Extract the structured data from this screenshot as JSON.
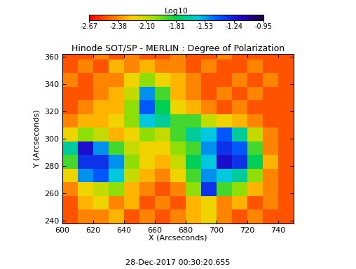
{
  "chart_data": {
    "type": "heatmap",
    "title": "Hinode SOT/SP - MERLIN : Degree of Polarization",
    "x_label": "X (Arcseconds)",
    "y_label": "Y (Arcseconds)",
    "footnote": "28-Dec-2017 00:30:20.655",
    "xlim": [
      600,
      750
    ],
    "ylim": [
      238,
      362
    ],
    "xticks": [
      600,
      620,
      640,
      660,
      680,
      700,
      720,
      740
    ],
    "yticks": [
      240,
      260,
      280,
      300,
      320,
      340,
      360
    ],
    "cell_x_edges": [
      600,
      610,
      620,
      630,
      640,
      650,
      660,
      670,
      680,
      690,
      700,
      710,
      720,
      730,
      740,
      750
    ],
    "cell_y_edges": [
      238,
      248,
      258,
      268,
      278,
      288,
      298,
      308,
      318,
      328,
      338,
      348,
      358,
      362
    ],
    "cells": [
      [
        -2.5,
        -2.4,
        -2.4,
        -2.3,
        -2.5,
        -2.4,
        -2.5,
        -2.4,
        -2.3,
        -2.2,
        -2.4,
        -2.5,
        -2.4,
        -2.5,
        -2.5
      ],
      [
        -2.5,
        -2.3,
        -2.2,
        -2.4,
        -2.3,
        -2.5,
        -2.4,
        -2.5,
        -2.3,
        -2.2,
        -2.4,
        -2.3,
        -2.5,
        -2.4,
        -2.5
      ],
      [
        -2.4,
        -2.2,
        -2.1,
        -2.0,
        -2.3,
        -2.4,
        -2.5,
        -2.4,
        -2.0,
        -1.3,
        -1.9,
        -2.0,
        -2.3,
        -2.4,
        -2.5
      ],
      [
        -2.2,
        -1.5,
        -1.4,
        -1.6,
        -2.1,
        -2.3,
        -2.4,
        -2.2,
        -1.9,
        -1.5,
        -1.6,
        -1.7,
        -2.0,
        -2.4,
        -2.5
      ],
      [
        -1.9,
        -1.3,
        -1.3,
        -1.5,
        -2.0,
        -2.2,
        -2.3,
        -2.1,
        -1.8,
        -1.6,
        -1.2,
        -1.3,
        -1.8,
        -2.3,
        -2.5
      ],
      [
        -1.7,
        -1.2,
        -1.5,
        -1.9,
        -2.1,
        -2.2,
        -2.2,
        -2.0,
        -1.9,
        -1.5,
        -1.3,
        -1.4,
        -1.9,
        -2.4,
        -2.5
      ],
      [
        -2.2,
        -2.0,
        -2.1,
        -2.3,
        -2.2,
        -2.0,
        -2.1,
        -1.9,
        -1.7,
        -1.6,
        -1.4,
        -1.7,
        -2.1,
        -2.4,
        -2.5
      ],
      [
        -2.4,
        -2.3,
        -2.3,
        -2.2,
        -2.0,
        -1.6,
        -1.7,
        -1.9,
        -1.9,
        -2.1,
        -2.2,
        -2.3,
        -2.4,
        -2.5,
        -2.5
      ],
      [
        -2.5,
        -2.4,
        -2.3,
        -2.3,
        -2.0,
        -1.4,
        -1.8,
        -2.2,
        -2.3,
        -2.4,
        -2.5,
        -2.4,
        -2.5,
        -2.5,
        -2.5
      ],
      [
        -2.5,
        -2.5,
        -2.4,
        -2.3,
        -2.1,
        -1.5,
        -1.9,
        -2.3,
        -2.4,
        -2.5,
        -2.4,
        -2.5,
        -2.4,
        -2.5,
        -2.5
      ],
      [
        -2.4,
        -2.5,
        -2.4,
        -2.4,
        -2.2,
        -2.0,
        -2.2,
        -2.3,
        -2.4,
        -2.5,
        -2.5,
        -2.4,
        -2.5,
        -2.4,
        -2.5
      ],
      [
        -2.5,
        -2.4,
        -2.5,
        -2.3,
        -2.4,
        -2.3,
        -2.4,
        -2.4,
        -2.5,
        -2.4,
        -2.5,
        -2.5,
        -2.4,
        -2.5,
        -2.5
      ],
      [
        -2.5,
        -2.5,
        -2.4,
        -2.5,
        -2.4,
        -2.5,
        -2.5,
        -2.4,
        -2.5,
        -2.5,
        -2.4,
        -2.5,
        -2.5,
        -2.5,
        -2.5
      ]
    ],
    "colorbar": {
      "label": "Log10",
      "range": [
        -2.67,
        -0.95
      ],
      "ticks": [
        -2.67,
        -2.38,
        {
          "value": -2.1,
          "label": "-2.10"
        },
        -1.81,
        -1.53,
        -1.24,
        -0.95
      ]
    }
  }
}
